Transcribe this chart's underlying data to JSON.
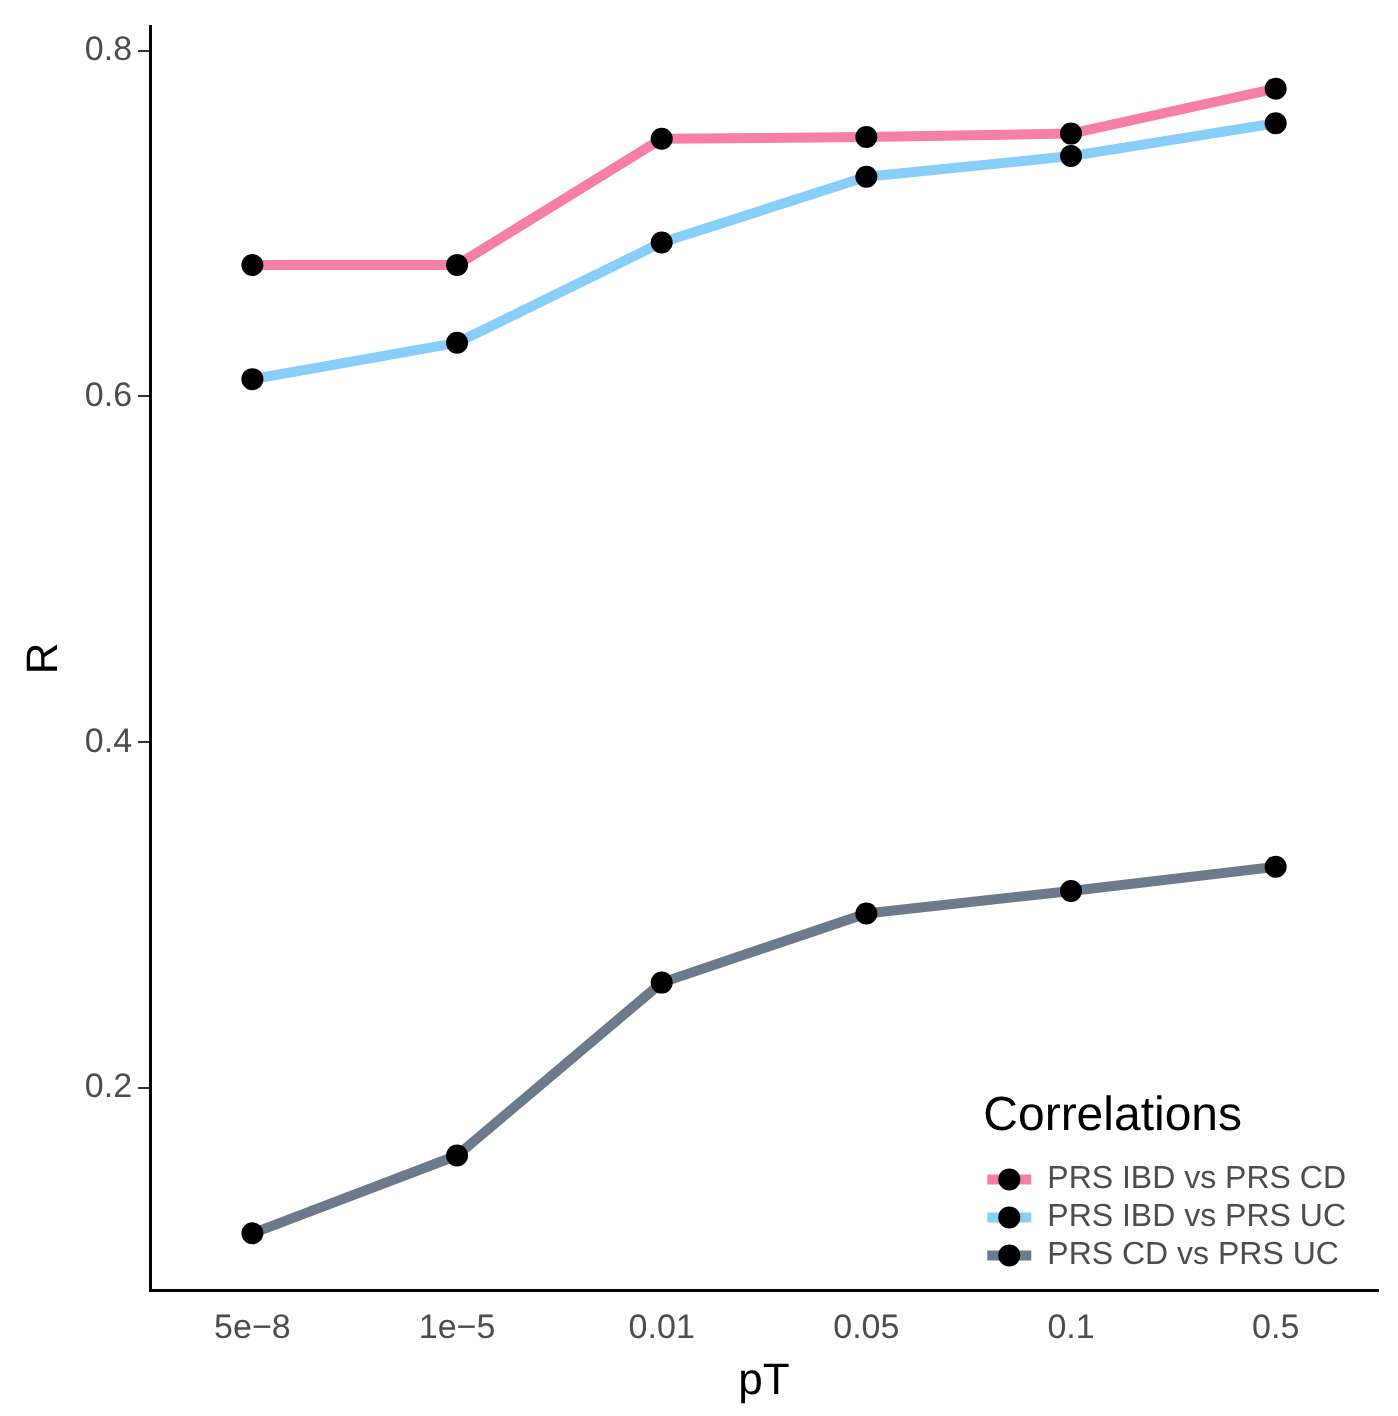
{
  "chart_data": {
    "type": "line",
    "xlabel": "pT",
    "ylabel": "R",
    "legend_title": "Correlations",
    "categories": [
      "5e−8",
      "1e−5",
      "0.01",
      "0.05",
      "0.1",
      "0.5"
    ],
    "series": [
      {
        "name": "PRS IBD vs PRS CD",
        "color": "#f77fa6",
        "values": [
          0.676,
          0.676,
          0.749,
          0.75,
          0.752,
          0.778
        ]
      },
      {
        "name": "PRS IBD vs PRS UC",
        "color": "#87cefa",
        "values": [
          0.61,
          0.631,
          0.689,
          0.727,
          0.739,
          0.758
        ]
      },
      {
        "name": "PRS CD vs PRS UC",
        "color": "#6c7b8b",
        "values": [
          0.116,
          0.161,
          0.261,
          0.301,
          0.314,
          0.328
        ]
      }
    ],
    "ylim": [
      0.083,
      0.814
    ],
    "yticks": [
      0.2,
      0.4,
      0.6,
      0.8
    ],
    "grid": false,
    "legend": "bottom right",
    "marker": "circle",
    "line_style": "solid"
  }
}
